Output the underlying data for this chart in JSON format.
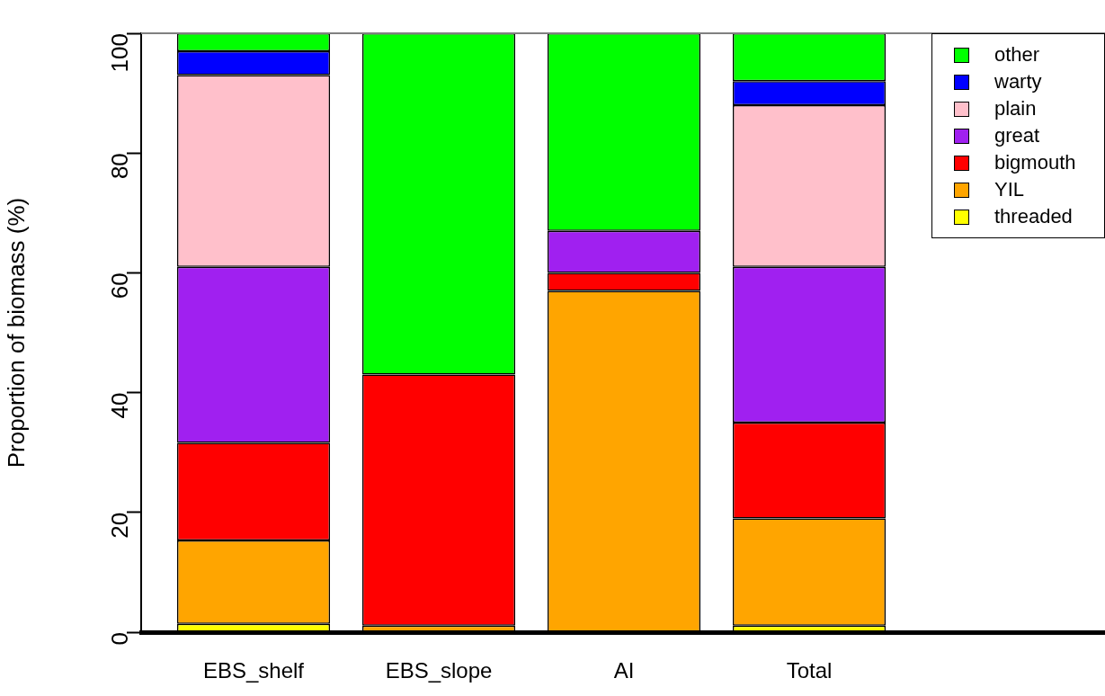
{
  "chart_data": {
    "type": "bar",
    "stacked": true,
    "ylabel": "Proportion of biomass (%)",
    "categories": [
      "EBS_shelf",
      "EBS_slope",
      "AI",
      "Total"
    ],
    "series": [
      {
        "name": "threaded",
        "color": "#ffff00",
        "values": [
          1.4,
          0,
          0,
          1.1
        ]
      },
      {
        "name": "YIL",
        "color": "#ffa500",
        "values": [
          13.9,
          1.1,
          57,
          17.9
        ]
      },
      {
        "name": "bigmouth",
        "color": "#ff0000",
        "values": [
          16.3,
          41.9,
          3,
          16
        ]
      },
      {
        "name": "great",
        "color": "#a020f0",
        "values": [
          29.4,
          0,
          7,
          26
        ]
      },
      {
        "name": "plain",
        "color": "#ffc0cb",
        "values": [
          32,
          0,
          0,
          27
        ]
      },
      {
        "name": "warty",
        "color": "#0000ff",
        "values": [
          4,
          0,
          0,
          4
        ]
      },
      {
        "name": "other",
        "color": "#00ff00",
        "values": [
          3,
          57,
          33,
          8
        ]
      }
    ],
    "ylim": [
      0,
      100
    ],
    "yticks": [
      0,
      20,
      40,
      60,
      80,
      100
    ],
    "ref_lines": [
      {
        "axis": "y",
        "value": 100,
        "color": "#808080"
      }
    ],
    "grid": false,
    "legend": "top right"
  }
}
